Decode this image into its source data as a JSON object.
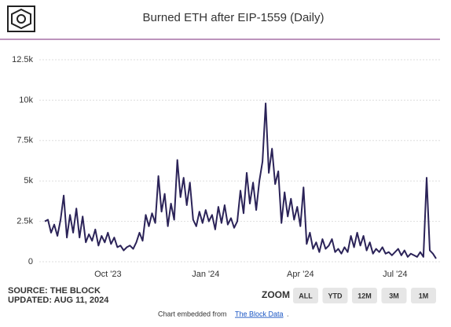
{
  "chart_data": {
    "type": "line",
    "title": "Burned ETH after EIP-1559 (Daily)",
    "categories": [
      null,
      null,
      null,
      null,
      null,
      null,
      null,
      null,
      null,
      null,
      null,
      null,
      null,
      null,
      null,
      null,
      null,
      null,
      null,
      null,
      "Oct '23",
      null,
      null,
      null,
      null,
      null,
      null,
      null,
      null,
      null,
      null,
      null,
      null,
      null,
      null,
      null,
      null,
      null,
      null,
      null,
      null,
      null,
      null,
      null,
      null,
      null,
      null,
      null,
      null,
      null,
      null,
      "Jan '24",
      null,
      null,
      null,
      null,
      null,
      null,
      null,
      null,
      null,
      null,
      null,
      null,
      null,
      null,
      null,
      null,
      null,
      null,
      null,
      null,
      null,
      null,
      null,
      null,
      null,
      null,
      null,
      null,
      null,
      "Apr '24",
      null,
      null,
      null,
      null,
      null,
      null,
      null,
      null,
      null,
      null,
      null,
      null,
      null,
      null,
      null,
      null,
      null,
      null,
      null,
      null,
      null,
      null,
      null,
      null,
      null,
      null,
      null,
      null,
      null,
      "Jul '24",
      null,
      null,
      null,
      null,
      null,
      null,
      null,
      null,
      null,
      null,
      null,
      null,
      null
    ],
    "series": [
      {
        "name": "Burned ETH",
        "color": "#2b2358",
        "values": [
          2500,
          2600,
          1800,
          2300,
          1600,
          2600,
          4100,
          1500,
          2900,
          1800,
          3300,
          1500,
          2800,
          1200,
          1700,
          1300,
          2000,
          1000,
          1600,
          1200,
          1800,
          1100,
          1500,
          900,
          1000,
          700,
          900,
          1000,
          800,
          1200,
          1800,
          1300,
          2900,
          2200,
          3000,
          2400,
          5300,
          3100,
          4200,
          2200,
          3600,
          2600,
          6300,
          4000,
          5200,
          3500,
          4900,
          2600,
          2200,
          3100,
          2400,
          3200,
          2500,
          2900,
          2000,
          3400,
          2400,
          3500,
          2300,
          2700,
          2100,
          2500,
          4400,
          3000,
          5500,
          3600,
          4900,
          3200,
          5000,
          6200,
          9800,
          5500,
          7000,
          4800,
          5600,
          2400,
          4300,
          2800,
          3900,
          2600,
          3400,
          2200,
          4600,
          1100,
          1800,
          800,
          1200,
          600,
          1400,
          800,
          1000,
          1400,
          600,
          800,
          500,
          900,
          600,
          1600,
          900,
          1800,
          1000,
          1600,
          700,
          1200,
          500,
          800,
          600,
          900,
          500,
          600,
          400,
          600,
          800,
          400,
          700,
          300,
          500,
          400,
          300,
          600,
          300,
          5200,
          700,
          500,
          200
        ]
      }
    ],
    "ylim": [
      0,
      12500
    ],
    "yticks": [
      0,
      {
        "value": 2500,
        "label": "2.5k"
      },
      {
        "value": 5000,
        "label": "5k"
      },
      {
        "value": 7500,
        "label": "7.5k"
      },
      {
        "value": 10000,
        "label": "10k"
      },
      {
        "value": 12500,
        "label": "12.5k"
      }
    ],
    "grid": true,
    "source": "SOURCE: THE BLOCK",
    "updated": "UPDATED: AUG 11, 2024",
    "zoom_label": "ZOOM",
    "zoom_buttons": [
      "ALL",
      "YTD",
      "12M",
      "3M",
      "1M"
    ],
    "footer": "Chart embedded from",
    "footer_link": "The Block Data",
    "footer_end": "."
  }
}
